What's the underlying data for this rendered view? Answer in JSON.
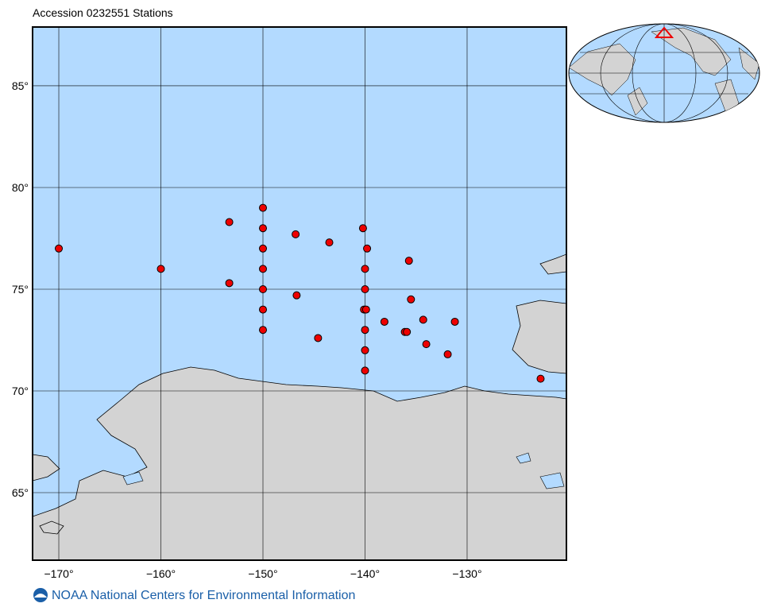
{
  "chart_data": {
    "type": "scatter",
    "title": "Accession 0232551 Stations",
    "x": [
      -170,
      -160,
      -153.3,
      -153.3,
      -150,
      -150,
      -150,
      -150,
      -150,
      -150,
      -150,
      -146.8,
      -146.7,
      -143.5,
      -144.6,
      -140.2,
      -139.8,
      -140,
      -140,
      -140.1,
      -139.9,
      -140,
      -140,
      -140,
      -138.1,
      -136.1,
      -135.9,
      -135.7,
      -135.5,
      -134.3,
      -134.0,
      -131.2,
      -131.9,
      -122.8
    ],
    "values": [
      77.0,
      76.0,
      78.3,
      75.3,
      79.0,
      78.0,
      77.0,
      76.0,
      75.0,
      74.0,
      73.0,
      77.7,
      74.7,
      77.3,
      72.6,
      78.0,
      77.0,
      76.0,
      75.0,
      74.0,
      74.0,
      73.0,
      72.0,
      71.0,
      73.4,
      72.9,
      72.9,
      76.4,
      74.5,
      73.5,
      72.3,
      73.4,
      71.8,
      70.6
    ],
    "color": "#ee0000",
    "xlim": [
      -172.57,
      -120.27
    ],
    "ylim": [
      61.68,
      87.89
    ],
    "xticks": [
      {
        "value": -170,
        "label": "−170°"
      },
      {
        "value": -160,
        "label": "−160°"
      },
      {
        "value": -150,
        "label": "−150°"
      },
      {
        "value": -140,
        "label": "−140°"
      },
      {
        "value": -130,
        "label": "−130°"
      }
    ],
    "yticks": [
      {
        "value": 65,
        "label": "65°"
      },
      {
        "value": 70,
        "label": "70°"
      },
      {
        "value": 75,
        "label": "75°"
      },
      {
        "value": 80,
        "label": "80°"
      },
      {
        "value": 85,
        "label": "85°"
      }
    ],
    "grid": true
  },
  "footer": "NOAA National Centers for Environmental Information"
}
